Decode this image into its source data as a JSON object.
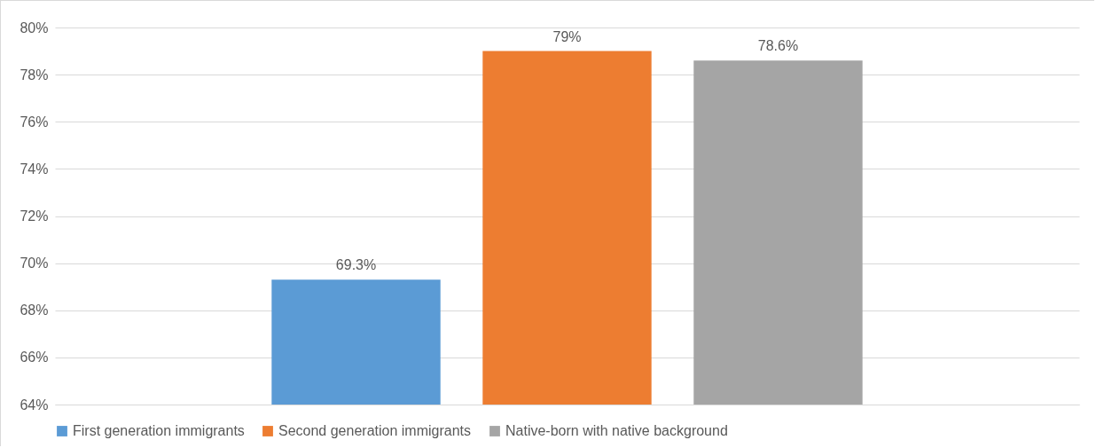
{
  "chart_data": {
    "type": "bar",
    "categories": [
      null
    ],
    "series": [
      {
        "name": "First generation immigrants",
        "color": "#5b9bd5",
        "values": [
          69.3
        ],
        "value_labels": [
          "69.3%"
        ]
      },
      {
        "name": "Second generation immigrants",
        "color": "#ed7d31",
        "values": [
          79
        ],
        "value_labels": [
          "79%"
        ]
      },
      {
        "name": "Native-born with native background",
        "color": "#a5a5a5",
        "values": [
          78.6
        ],
        "value_labels": [
          "78.6%"
        ]
      }
    ],
    "ylim": [
      64,
      80
    ],
    "yticks": [
      {
        "value": 64,
        "label": "64%"
      },
      {
        "value": 66,
        "label": "66%"
      },
      {
        "value": 68,
        "label": "68%"
      },
      {
        "value": 70,
        "label": "70%"
      },
      {
        "value": 72,
        "label": "72%"
      },
      {
        "value": 74,
        "label": "74%"
      },
      {
        "value": 76,
        "label": "76%"
      },
      {
        "value": 78,
        "label": "78%"
      },
      {
        "value": 80,
        "label": "80%"
      }
    ],
    "grid": "y",
    "legend": "bottom"
  }
}
